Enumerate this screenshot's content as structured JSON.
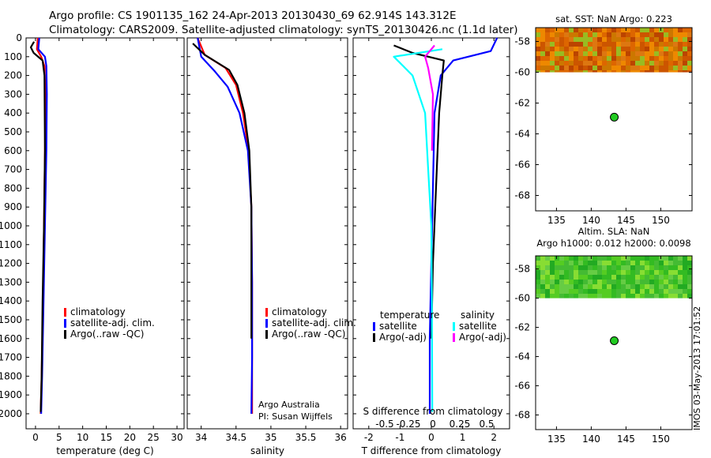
{
  "header": {
    "line1": "Argo profile: CS 1901135_162 24-Apr-2013 20130430_69 62.914S 143.312E",
    "line2": "Climatology: CARS2009. Satellite-adjusted climatology: synTS_20130426.nc (1.1d later)"
  },
  "colors": {
    "climatology": "#ff0000",
    "satellite": "#0000ff",
    "argo": "#000000",
    "cyan": "#00ffff",
    "magenta": "#ff00ff"
  },
  "footer_stamp": "IMOS 03-May-2013 17:01:52",
  "chart_data": [
    {
      "id": "temperature",
      "type": "line",
      "xlabel": "temperature (deg C)",
      "ylabel": "",
      "xlim": [
        -2,
        31.5
      ],
      "ylim": [
        0,
        2080
      ],
      "y_reversed": true,
      "xticks": [
        0,
        5,
        10,
        15,
        20,
        25,
        30
      ],
      "yticks": [
        0,
        100,
        200,
        300,
        400,
        500,
        600,
        700,
        800,
        900,
        1000,
        1100,
        1200,
        1300,
        1400,
        1500,
        1600,
        1700,
        1800,
        1900,
        2000
      ],
      "legend": [
        "climatology",
        "satellite-adj. clim.",
        "Argo(..raw -QC)"
      ],
      "series": [
        {
          "name": "climatology",
          "color": "#ff0000",
          "x": [
            0.5,
            0.3,
            1.2,
            1.9,
            2.1,
            2.0,
            1.8,
            1.6,
            1.3,
            1.1
          ],
          "y": [
            0,
            60,
            100,
            150,
            300,
            600,
            1000,
            1400,
            1800,
            2000
          ]
        },
        {
          "name": "satellite-adj. clim.",
          "color": "#0000ff",
          "x": [
            0.8,
            0.6,
            2.0,
            2.3,
            2.4,
            2.3,
            2.0,
            1.7,
            1.4,
            1.2
          ],
          "y": [
            0,
            60,
            100,
            150,
            300,
            600,
            1000,
            1400,
            1800,
            2000
          ]
        },
        {
          "name": "Argo(..raw -QC)",
          "color": "#000000",
          "x": [
            -0.3,
            -1.0,
            -0.4,
            1.5,
            1.9,
            2.0,
            1.8,
            1.5,
            1.3,
            1.1
          ],
          "y": [
            20,
            50,
            80,
            120,
            200,
            600,
            1000,
            1400,
            1800,
            1990
          ]
        }
      ]
    },
    {
      "id": "salinity",
      "type": "line",
      "xlabel": "salinity",
      "ylabel": "",
      "xlim": [
        33.8,
        36.1
      ],
      "ylim": [
        0,
        2080
      ],
      "y_reversed": true,
      "xticks": [
        34,
        34.5,
        35,
        35.5,
        36
      ],
      "legend": [
        "climatology",
        "satellite-adj. clim.",
        "Argo(..raw -QC)"
      ],
      "annotation": [
        "Argo Australia",
        "PI: Susan Wijffels"
      ],
      "series": [
        {
          "name": "climatology",
          "color": "#ff0000",
          "x": [
            33.95,
            34.05,
            34.35,
            34.5,
            34.6,
            34.68,
            34.72,
            34.73,
            34.73,
            34.73
          ],
          "y": [
            0,
            90,
            160,
            250,
            400,
            600,
            900,
            1300,
            1700,
            2000
          ]
        },
        {
          "name": "satellite-adj. clim.",
          "color": "#0000ff",
          "x": [
            33.95,
            34.0,
            34.2,
            34.38,
            34.55,
            34.67,
            34.72,
            34.73,
            34.73,
            34.72
          ],
          "y": [
            0,
            100,
            180,
            260,
            400,
            600,
            900,
            1300,
            1700,
            2000
          ]
        },
        {
          "name": "Argo(..raw -QC)",
          "color": "#000000",
          "x": [
            33.88,
            34.05,
            34.4,
            34.52,
            34.62,
            34.69,
            34.72,
            34.72,
            34.72
          ],
          "y": [
            30,
            90,
            170,
            250,
            400,
            600,
            900,
            1300,
            1600
          ]
        }
      ]
    },
    {
      "id": "difference",
      "type": "line",
      "xlabel": "T difference from climatology",
      "ylabel": "",
      "top_axis_label": "S difference from climatology",
      "xlim": [
        -2.5,
        2.5
      ],
      "ylim": [
        0,
        2080
      ],
      "y_reversed": true,
      "xticks": [
        -2,
        -1,
        0,
        1,
        2
      ],
      "top_xticks": [
        "-0.5",
        "-0.25",
        "0",
        "0.25",
        "0.5"
      ],
      "legend_title_left": "temperature",
      "legend_title_right": "salinity",
      "legend": [
        "satellite",
        "Argo(-adj)",
        "satellite",
        "Argo(-adj)"
      ],
      "series": [
        {
          "name": "temperature satellite",
          "color": "#0000ff",
          "x": [
            2.1,
            1.9,
            0.7,
            0.3,
            0.1,
            0.05,
            0.0,
            -0.05,
            -0.05
          ],
          "y": [
            0,
            70,
            120,
            200,
            400,
            800,
            1200,
            1600,
            2000
          ]
        },
        {
          "name": "temperature Argo(-adj)",
          "color": "#000000",
          "x": [
            -1.2,
            -0.6,
            0.4,
            0.35,
            0.25,
            0.15,
            0.05,
            0.0
          ],
          "y": [
            40,
            80,
            120,
            200,
            400,
            800,
            1200,
            1600
          ]
        },
        {
          "name": "salinity satellite",
          "color": "#00ffff",
          "x": [
            0.35,
            -1.2,
            -0.6,
            -0.2,
            -0.1,
            0.0,
            0.02,
            0.03
          ],
          "y": [
            60,
            100,
            200,
            400,
            700,
            1000,
            1500,
            1990
          ]
        },
        {
          "name": "salinity Argo(-adj)",
          "color": "#ff00ff",
          "x": [
            0.1,
            -0.2,
            -0.1,
            0.05,
            0.02
          ],
          "y": [
            40,
            100,
            160,
            300,
            600
          ]
        }
      ]
    },
    {
      "id": "sst_map",
      "type": "heatmap",
      "title": "sat. SST: NaN Argo: 0.223",
      "xticks": [
        135,
        140,
        145,
        150
      ],
      "yticks": [
        -58,
        -60,
        -62,
        -64,
        -66,
        -68
      ],
      "xlim": [
        132,
        154.5
      ],
      "ylim": [
        -69,
        -57.1
      ],
      "marker": {
        "lon": 143.312,
        "lat": -62.914,
        "color": "#22cc22"
      }
    },
    {
      "id": "sla_map",
      "type": "heatmap",
      "title_line1": "Altim. SLA: NaN",
      "title_line2": "Argo h1000: 0.012 h2000: 0.0098",
      "xticks": [
        135,
        140,
        145,
        150
      ],
      "yticks": [
        -58,
        -60,
        -62,
        -64,
        -66,
        -68
      ],
      "xlim": [
        132,
        154.5
      ],
      "ylim": [
        -69,
        -57.1
      ],
      "marker": {
        "lon": 143.312,
        "lat": -62.914,
        "color": "#22cc22"
      }
    }
  ]
}
